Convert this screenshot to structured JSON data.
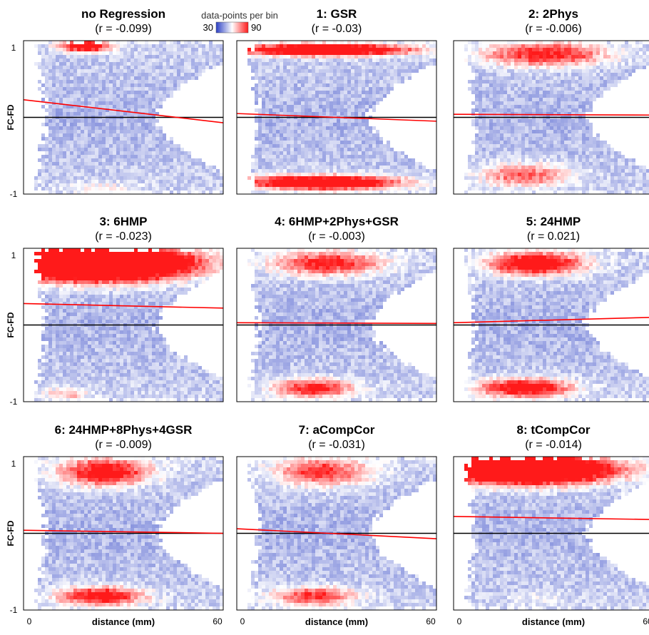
{
  "chart_data": [
    {
      "type": "heatmap",
      "title": "no Regression",
      "subtitle": "(r = -0.099)",
      "r": -0.099,
      "xlim": [
        0,
        60
      ],
      "ylim": [
        -1,
        1
      ],
      "xticks": [
        "0",
        "60"
      ],
      "yticks": [
        "1",
        "-1"
      ],
      "ylabel": "FC-FD",
      "xlabel": "",
      "fit_line": [
        [
          0,
          0.23
        ],
        [
          60,
          -0.07
        ]
      ],
      "zero_line": 0
    },
    {
      "type": "heatmap",
      "title": "1: GSR",
      "subtitle": "(r = -0.03)",
      "r": -0.03,
      "xlim": [
        0,
        60
      ],
      "ylim": [
        -1,
        1
      ],
      "xticks": [
        "0",
        "60"
      ],
      "yticks": [],
      "ylabel": "",
      "xlabel": "",
      "fit_line": [
        [
          0,
          0.05
        ],
        [
          60,
          -0.05
        ]
      ],
      "zero_line": 0
    },
    {
      "type": "heatmap",
      "title": "2: 2Phys",
      "subtitle": "(r = -0.006)",
      "r": -0.006,
      "xlim": [
        0,
        60
      ],
      "ylim": [
        -1,
        1
      ],
      "xticks": [
        "0",
        "60"
      ],
      "yticks": [],
      "ylabel": "",
      "xlabel": "",
      "fit_line": [
        [
          0,
          0.04
        ],
        [
          60,
          0.03
        ]
      ],
      "zero_line": 0
    },
    {
      "type": "heatmap",
      "title": "3: 6HMP",
      "subtitle": "(r = -0.023)",
      "r": -0.023,
      "xlim": [
        0,
        60
      ],
      "ylim": [
        -1,
        1
      ],
      "xticks": [
        "0",
        "60"
      ],
      "yticks": [
        "1",
        "-1"
      ],
      "ylabel": "FC-FD",
      "xlabel": "",
      "fit_line": [
        [
          0,
          0.28
        ],
        [
          60,
          0.22
        ]
      ],
      "zero_line": 0
    },
    {
      "type": "heatmap",
      "title": "4: 6HMP+2Phys+GSR",
      "subtitle": "(r = -0.003)",
      "r": -0.003,
      "xlim": [
        0,
        60
      ],
      "ylim": [
        -1,
        1
      ],
      "xticks": [
        "0",
        "60"
      ],
      "yticks": [],
      "ylabel": "",
      "xlabel": "",
      "fit_line": [
        [
          0,
          0.03
        ],
        [
          60,
          0.02
        ]
      ],
      "zero_line": 0
    },
    {
      "type": "heatmap",
      "title": "5: 24HMP",
      "subtitle": "(r = 0.021)",
      "r": 0.021,
      "xlim": [
        0,
        60
      ],
      "ylim": [
        -1,
        1
      ],
      "xticks": [
        "0",
        "60"
      ],
      "yticks": [],
      "ylabel": "",
      "xlabel": "",
      "fit_line": [
        [
          0,
          0.03
        ],
        [
          60,
          0.1
        ]
      ],
      "zero_line": 0
    },
    {
      "type": "heatmap",
      "title": "6: 24HMP+8Phys+4GSR",
      "subtitle": "(r = -0.009)",
      "r": -0.009,
      "xlim": [
        0,
        60
      ],
      "ylim": [
        -1,
        1
      ],
      "xticks": [
        "0",
        "60"
      ],
      "yticks": [
        "1",
        "-1"
      ],
      "ylabel": "FC-FD",
      "xlabel": "distance (mm)",
      "fit_line": [
        [
          0,
          0.04
        ],
        [
          60,
          0.0
        ]
      ],
      "zero_line": 0
    },
    {
      "type": "heatmap",
      "title": "7: aCompCor",
      "subtitle": "(r = -0.031)",
      "r": -0.031,
      "xlim": [
        0,
        60
      ],
      "ylim": [
        -1,
        1
      ],
      "xticks": [
        "0",
        "60"
      ],
      "yticks": [],
      "ylabel": "",
      "xlabel": "distance (mm)",
      "fit_line": [
        [
          0,
          0.06
        ],
        [
          60,
          -0.07
        ]
      ],
      "zero_line": 0
    },
    {
      "type": "heatmap",
      "title": "8: tCompCor",
      "subtitle": "(r = -0.014)",
      "r": -0.014,
      "xlim": [
        0,
        60
      ],
      "ylim": [
        -1,
        1
      ],
      "xticks": [
        "0",
        "60"
      ],
      "yticks": [],
      "ylabel": "",
      "xlabel": "distance (mm)",
      "fit_line": [
        [
          0,
          0.22
        ],
        [
          60,
          0.18
        ]
      ],
      "zero_line": 0
    }
  ],
  "colorbar": {
    "title": "data-points per bin",
    "min_label": "30",
    "max_label": "90",
    "min": 30,
    "max": 90,
    "low_color": "#2b3fc4",
    "mid_color": "#ffffff",
    "high_color": "#ff1a1a"
  },
  "colors": {
    "fit_line": "#ff0000",
    "zero_line": "#000000",
    "frame": "#000000"
  }
}
